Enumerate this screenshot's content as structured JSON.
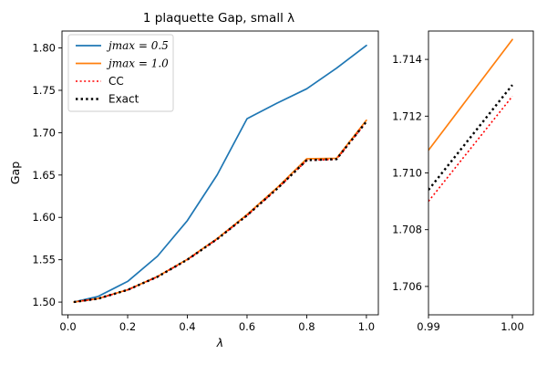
{
  "chart_data": [
    {
      "type": "line",
      "title": "1 plaquette  Gap, small λ",
      "xlabel": "λ",
      "ylabel": "Gap",
      "xlim": [
        -0.02,
        1.04
      ],
      "ylim": [
        1.485,
        1.82
      ],
      "xticks": [
        0.0,
        0.2,
        0.4,
        0.6,
        0.8,
        1.0
      ],
      "xtick_labels": [
        "0.0",
        "0.2",
        "0.4",
        "0.6",
        "0.8",
        "1.0"
      ],
      "yticks": [
        1.5,
        1.55,
        1.6,
        1.65,
        1.7,
        1.75,
        1.8
      ],
      "ytick_labels": [
        "1.50",
        "1.55",
        "1.60",
        "1.65",
        "1.70",
        "1.75",
        "1.80"
      ],
      "legend_position": "top-left",
      "series": [
        {
          "name": "j_max = 0.5",
          "legend_label": "jmax = 0.5",
          "color": "#1f77b4",
          "style": "solid",
          "x": [
            0.02,
            0.1,
            0.2,
            0.3,
            0.4,
            0.5,
            0.6,
            0.7,
            0.8,
            0.9,
            1.0
          ],
          "y": [
            1.5001,
            1.5066,
            1.5244,
            1.5542,
            1.5962,
            1.6502,
            1.7165,
            1.7348,
            1.7518,
            1.7762,
            1.803
          ]
        },
        {
          "name": "j_max = 1.0",
          "legend_label": "jmax = 1.0",
          "color": "#ff7f0e",
          "style": "solid",
          "x": [
            0.02,
            0.1,
            0.2,
            0.3,
            0.4,
            0.5,
            0.6,
            0.7,
            0.8,
            0.9,
            1.0
          ],
          "y": [
            1.5001,
            1.5041,
            1.5146,
            1.5302,
            1.5505,
            1.575,
            1.6033,
            1.6348,
            1.6692,
            1.6698,
            1.7147
          ]
        },
        {
          "name": "CC",
          "legend_label": "CC",
          "color": "#ff0000",
          "style": "dotted",
          "x": [
            0.02,
            0.1,
            0.2,
            0.3,
            0.4,
            0.5,
            0.6,
            0.7,
            0.8,
            0.9,
            1.0
          ],
          "y": [
            1.5001,
            1.504,
            1.5144,
            1.5299,
            1.55,
            1.5743,
            1.6022,
            1.6334,
            1.6672,
            1.6685,
            1.7127
          ]
        },
        {
          "name": "Exact",
          "legend_label": "Exact",
          "color": "#000000",
          "style": "dotted",
          "x": [
            0.02,
            0.1,
            0.2,
            0.3,
            0.4,
            0.5,
            0.6,
            0.7,
            0.8,
            0.9,
            1.0
          ],
          "y": [
            1.5001,
            1.504,
            1.5144,
            1.5299,
            1.5501,
            1.5744,
            1.6024,
            1.6336,
            1.6675,
            1.6688,
            1.7131
          ]
        }
      ]
    },
    {
      "type": "line",
      "title": "",
      "xlabel": "",
      "ylabel": "",
      "xlim": [
        0.99,
        1.0025
      ],
      "ylim": [
        1.705,
        1.715
      ],
      "xticks": [
        0.99,
        1.0
      ],
      "xtick_labels": [
        "0.99",
        "1.00"
      ],
      "yticks": [
        1.706,
        1.708,
        1.71,
        1.712,
        1.714
      ],
      "ytick_labels": [
        "1.706",
        "1.708",
        "1.710",
        "1.712",
        "1.714"
      ],
      "series": [
        {
          "name": "j_max = 1.0",
          "color": "#ff7f0e",
          "style": "solid",
          "x": [
            0.99,
            1.0
          ],
          "y": [
            1.7108,
            1.7147
          ]
        },
        {
          "name": "CC",
          "color": "#ff0000",
          "style": "dotted",
          "x": [
            0.99,
            1.0
          ],
          "y": [
            1.709,
            1.7127
          ]
        },
        {
          "name": "Exact",
          "color": "#000000",
          "style": "dotted",
          "x": [
            0.99,
            1.0
          ],
          "y": [
            1.7094,
            1.7131
          ]
        }
      ]
    }
  ]
}
